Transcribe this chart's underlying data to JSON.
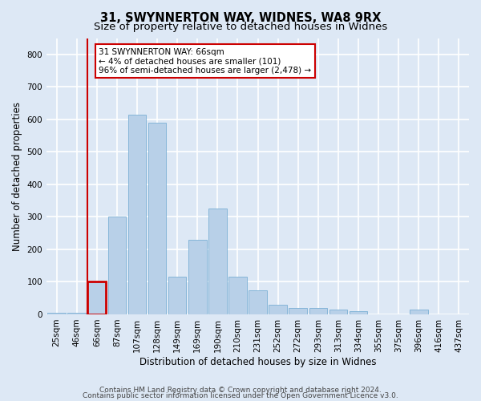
{
  "title1": "31, SWYNNERTON WAY, WIDNES, WA8 9RX",
  "title2": "Size of property relative to detached houses in Widnes",
  "xlabel": "Distribution of detached houses by size in Widnes",
  "ylabel": "Number of detached properties",
  "categories": [
    "25sqm",
    "46sqm",
    "66sqm",
    "87sqm",
    "107sqm",
    "128sqm",
    "149sqm",
    "169sqm",
    "190sqm",
    "210sqm",
    "231sqm",
    "252sqm",
    "272sqm",
    "293sqm",
    "313sqm",
    "334sqm",
    "355sqm",
    "375sqm",
    "396sqm",
    "416sqm",
    "437sqm"
  ],
  "values": [
    5,
    5,
    101,
    300,
    615,
    590,
    115,
    230,
    325,
    115,
    75,
    30,
    20,
    20,
    15,
    10,
    0,
    0,
    15,
    0,
    0
  ],
  "bar_color": "#b8d0e8",
  "bar_edge_color": "#7aafd4",
  "highlight_index": 2,
  "highlight_color": "#cc0000",
  "ylim": [
    0,
    850
  ],
  "yticks": [
    0,
    100,
    200,
    300,
    400,
    500,
    600,
    700,
    800
  ],
  "annotation_text": "31 SWYNNERTON WAY: 66sqm\n← 4% of detached houses are smaller (101)\n96% of semi-detached houses are larger (2,478) →",
  "annotation_box_color": "#ffffff",
  "annotation_box_edge": "#cc0000",
  "footer1": "Contains HM Land Registry data © Crown copyright and database right 2024.",
  "footer2": "Contains public sector information licensed under the Open Government Licence v3.0.",
  "bg_color": "#dde8f5",
  "plot_bg_color": "#dde8f5",
  "grid_color": "#ffffff",
  "title_fontsize": 10.5,
  "subtitle_fontsize": 9.5,
  "axis_label_fontsize": 8.5,
  "tick_fontsize": 7.5,
  "footer_fontsize": 6.5
}
